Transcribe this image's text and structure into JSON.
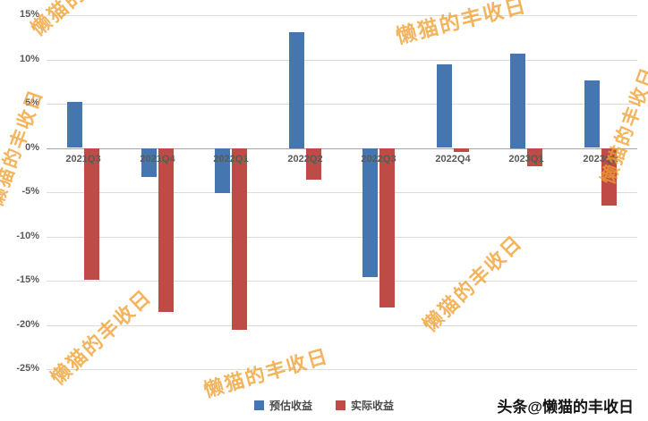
{
  "watermark": {
    "text": "懒猫的丰收日",
    "attribution": "头条@懒猫的丰收日"
  },
  "chart_data": {
    "type": "bar",
    "title": "",
    "categories": [
      "2021Q3",
      "2021Q4",
      "2022Q1",
      "2022Q2",
      "2022Q3",
      "2022Q4",
      "2023Q1",
      "2023Q2"
    ],
    "series": [
      {
        "name": "预估收益",
        "color": "#4576b0",
        "values": [
          5.2,
          -3.2,
          -5.0,
          13.1,
          -14.5,
          9.4,
          10.7,
          7.6
        ]
      },
      {
        "name": "实际收益",
        "color": "#bf4b47",
        "values": [
          -14.8,
          -18.5,
          -20.5,
          -3.5,
          -18.0,
          -0.4,
          -2.0,
          -6.5
        ]
      }
    ],
    "xlabel": "",
    "ylabel": "",
    "ylim": [
      -25,
      15
    ],
    "ytick_step": 5,
    "ytick_format": "percent",
    "grid": true,
    "legend_position": "bottom"
  }
}
